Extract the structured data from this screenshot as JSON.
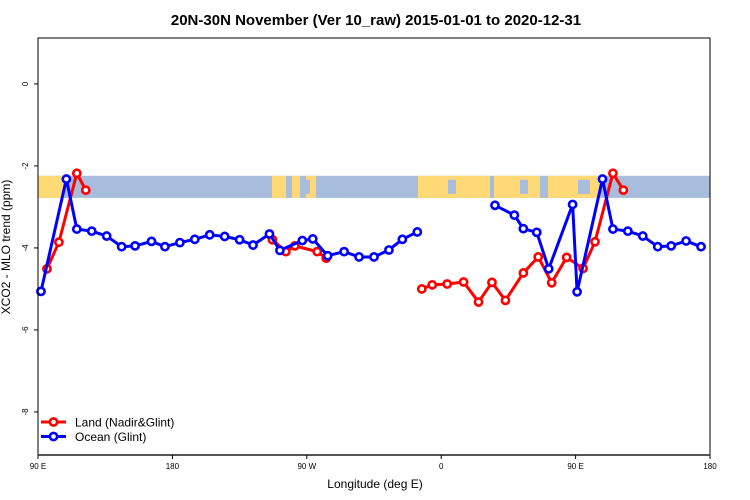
{
  "chart_data": {
    "type": "line",
    "title": "20N-30N November (Ver 10_raw)   2015-01-01 to 2020-12-31",
    "xlabel": "Longitude (deg E)",
    "ylabel": "XCO2 - MLO trend (ppm)",
    "xlim": [
      90,
      540
    ],
    "ylim": [
      -9.05,
      1.12
    ],
    "x_ticks": [
      {
        "value": 90,
        "label": "90 E"
      },
      {
        "value": 180,
        "label": "180"
      },
      {
        "value": 270,
        "label": "90 W"
      },
      {
        "value": 360,
        "label": "0"
      },
      {
        "value": 450,
        "label": "90 E"
      },
      {
        "value": 540,
        "label": "180"
      }
    ],
    "y_ticks": [
      {
        "value": 0,
        "label": "0"
      },
      {
        "value": -2,
        "label": "-2"
      },
      {
        "value": -4,
        "label": "-4"
      },
      {
        "value": -6,
        "label": "-6"
      },
      {
        "value": -8,
        "label": "-8"
      }
    ],
    "grid": false,
    "legend_position": "bottom-left",
    "map_strip": {
      "y_range": [
        -2.78,
        -2.24
      ],
      "ocean_color": "#a7bddb",
      "land_color": "#fed976"
    },
    "series": [
      {
        "name": "Land (Nadir&Glint)",
        "color": "#ff0000",
        "segments": [
          [
            [
              96,
              -4.51
            ],
            [
              104,
              -3.86
            ],
            [
              116,
              -2.18
            ],
            [
              122,
              -2.59
            ]
          ],
          [
            [
              247,
              -3.8
            ],
            [
              256,
              -4.09
            ],
            [
              262,
              -3.95
            ],
            [
              277,
              -4.09
            ],
            [
              283,
              -4.25
            ]
          ],
          [
            [
              347,
              -5.0
            ],
            [
              354,
              -4.9
            ],
            [
              364,
              -4.88
            ],
            [
              375,
              -4.83
            ],
            [
              385,
              -5.32
            ],
            [
              394,
              -4.84
            ],
            [
              403,
              -5.28
            ],
            [
              415,
              -4.61
            ],
            [
              425,
              -4.22
            ],
            [
              434,
              -4.85
            ],
            [
              444,
              -4.23
            ],
            [
              455,
              -4.5
            ],
            [
              463,
              -3.85
            ],
            [
              475,
              -2.18
            ],
            [
              482,
              -2.59
            ]
          ]
        ]
      },
      {
        "name": "Ocean (Glint)",
        "color": "#0000ff",
        "segments": [
          [
            [
              92,
              -5.06
            ],
            [
              109,
              -2.32
            ],
            [
              116,
              -3.54
            ],
            [
              126,
              -3.59
            ],
            [
              136,
              -3.71
            ],
            [
              146,
              -3.97
            ],
            [
              155,
              -3.95
            ],
            [
              166,
              -3.84
            ],
            [
              175,
              -3.97
            ],
            [
              185,
              -3.87
            ],
            [
              195,
              -3.79
            ],
            [
              205,
              -3.68
            ],
            [
              215,
              -3.72
            ],
            [
              225,
              -3.8
            ],
            [
              234,
              -3.93
            ],
            [
              245,
              -3.66
            ],
            [
              252,
              -4.06
            ],
            [
              267,
              -3.82
            ],
            [
              274,
              -3.78
            ],
            [
              284,
              -4.19
            ],
            [
              295,
              -4.09
            ],
            [
              305,
              -4.22
            ],
            [
              315,
              -4.22
            ],
            [
              325,
              -4.05
            ],
            [
              334,
              -3.79
            ],
            [
              344,
              -3.61
            ]
          ],
          [
            [
              396,
              -2.96
            ],
            [
              409,
              -3.2
            ],
            [
              415,
              -3.53
            ],
            [
              424,
              -3.62
            ],
            [
              432,
              -4.51
            ],
            [
              448,
              -2.94
            ],
            [
              451,
              -5.07
            ],
            [
              468,
              -2.32
            ],
            [
              475,
              -3.54
            ],
            [
              485,
              -3.59
            ],
            [
              495,
              -3.71
            ],
            [
              505,
              -3.97
            ],
            [
              514,
              -3.95
            ],
            [
              524,
              -3.83
            ],
            [
              534,
              -3.97
            ]
          ]
        ]
      }
    ]
  }
}
